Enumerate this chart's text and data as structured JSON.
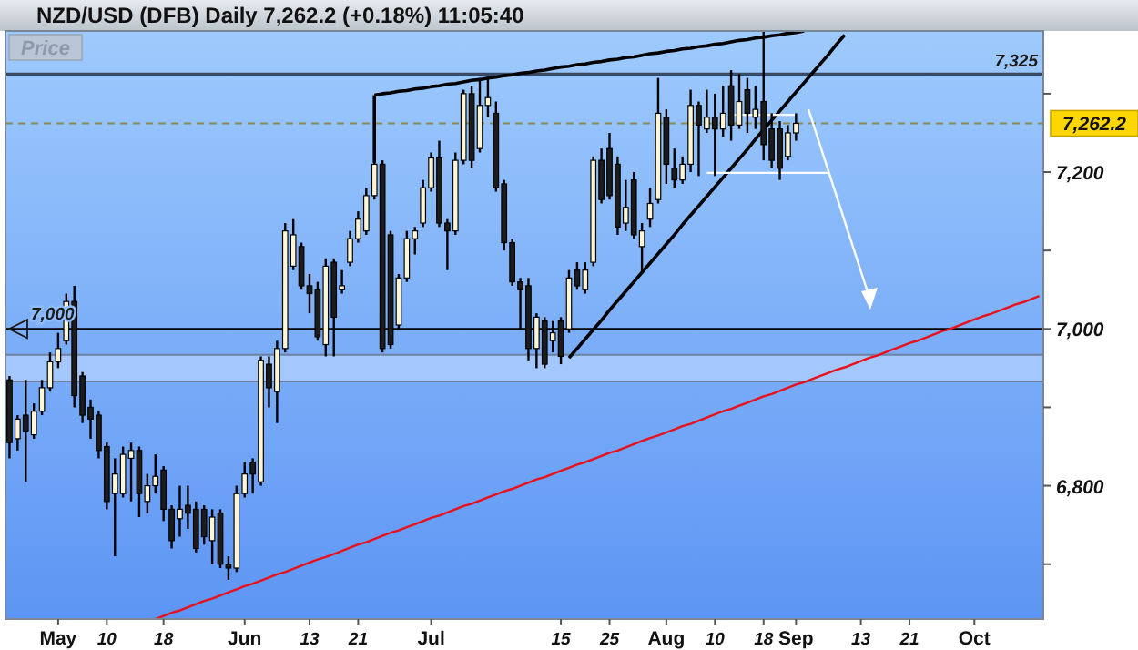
{
  "chart_data": {
    "type": "candlestick",
    "title": "NZD/USD (DFB)   Daily   7,262.2 (+0.18%)   11:05:40",
    "ylabel": "Price",
    "categories": [
      null,
      null,
      null,
      null,
      null,
      null,
      "May",
      null,
      null,
      null,
      null,
      null,
      "10",
      null,
      null,
      null,
      null,
      null,
      null,
      "18",
      null,
      null,
      null,
      null,
      null,
      null,
      null,
      null,
      null,
      "Jun",
      null,
      null,
      null,
      null,
      null,
      null,
      null,
      "13",
      null,
      null,
      null,
      null,
      null,
      "21",
      null,
      null,
      null,
      null,
      null,
      null,
      null,
      null,
      "Jul",
      null,
      null,
      null,
      null,
      null,
      null,
      null,
      null,
      null,
      null,
      null,
      null,
      null,
      null,
      null,
      "15",
      null,
      null,
      null,
      null,
      null,
      "25",
      null,
      null,
      null,
      null,
      null,
      null,
      "Aug",
      null,
      null,
      null,
      null,
      null,
      "10",
      null,
      null,
      null,
      null,
      null,
      "18",
      null,
      null,
      null,
      "Sep",
      null,
      null,
      null,
      null,
      null,
      null,
      null,
      "13",
      null,
      null,
      null,
      null,
      null,
      "21",
      null,
      null,
      null,
      null,
      null,
      null,
      null,
      "Oct",
      null,
      null,
      null,
      null,
      null,
      null,
      null,
      null
    ],
    "ylim": [
      6630,
      7380
    ],
    "yticks": [
      {
        "value": 6700,
        "label": null
      },
      {
        "value": 6800,
        "label": "6,800"
      },
      {
        "value": 6900,
        "label": null
      },
      {
        "value": 7000,
        "label": "7,000"
      },
      {
        "value": 7100,
        "label": null
      },
      {
        "value": 7200,
        "label": "7,200"
      },
      {
        "value": 7300,
        "label": null
      }
    ],
    "ohlc": [
      [
        6935,
        6940,
        6835,
        6855
      ],
      [
        6860,
        6890,
        6845,
        6885
      ],
      [
        6890,
        6935,
        6805,
        6870
      ],
      [
        6865,
        6905,
        6860,
        6895
      ],
      [
        6895,
        6935,
        6890,
        6925
      ],
      [
        6925,
        6970,
        6920,
        6958
      ],
      [
        6958,
        6995,
        6950,
        6975
      ],
      [
        6985,
        7045,
        6980,
        7035
      ],
      [
        7035,
        7055,
        6900,
        6915
      ],
      [
        6940,
        6945,
        6880,
        6890
      ],
      [
        6900,
        6910,
        6860,
        6885
      ],
      [
        6890,
        6895,
        6835,
        6845
      ],
      [
        6850,
        6855,
        6770,
        6780
      ],
      [
        6790,
        6835,
        6710,
        6815
      ],
      [
        6790,
        6850,
        6785,
        6840
      ],
      [
        6835,
        6855,
        6780,
        6845
      ],
      [
        6845,
        6850,
        6760,
        6790
      ],
      [
        6780,
        6815,
        6765,
        6800
      ],
      [
        6800,
        6840,
        6790,
        6812
      ],
      [
        6820,
        6825,
        6755,
        6770
      ],
      [
        6770,
        6775,
        6720,
        6730
      ],
      [
        6758,
        6800,
        6735,
        6770
      ],
      [
        6775,
        6800,
        6745,
        6765
      ],
      [
        6770,
        6780,
        6715,
        6720
      ],
      [
        6770,
        6775,
        6725,
        6735
      ],
      [
        6730,
        6770,
        6700,
        6760
      ],
      [
        6765,
        6770,
        6695,
        6700
      ],
      [
        6700,
        6710,
        6680,
        6695
      ],
      [
        6695,
        6800,
        6690,
        6790
      ],
      [
        6790,
        6830,
        6785,
        6815
      ],
      [
        6830,
        6835,
        6790,
        6815
      ],
      [
        6805,
        6965,
        6800,
        6960
      ],
      [
        6955,
        6965,
        6900,
        6925
      ],
      [
        6920,
        6985,
        6880,
        6975
      ],
      [
        6975,
        7135,
        6970,
        7125
      ],
      [
        7080,
        7140,
        7075,
        7120
      ],
      [
        7105,
        7110,
        7050,
        7055
      ],
      [
        7055,
        7070,
        7020,
        7045
      ],
      [
        7050,
        7060,
        6985,
        6990
      ],
      [
        6980,
        7090,
        6965,
        7080
      ],
      [
        7085,
        7090,
        6965,
        7015
      ],
      [
        7050,
        7075,
        7045,
        7055
      ],
      [
        7085,
        7125,
        7080,
        7115
      ],
      [
        7115,
        7150,
        7110,
        7140
      ],
      [
        7125,
        7180,
        7120,
        7170
      ],
      [
        7170,
        7290,
        7165,
        7210
      ],
      [
        7210,
        7215,
        6970,
        6975
      ],
      [
        7120,
        7125,
        6975,
        6980
      ],
      [
        7005,
        7070,
        7000,
        7065
      ],
      [
        7065,
        7125,
        7060,
        7115
      ],
      [
        7115,
        7130,
        7095,
        7125
      ],
      [
        7135,
        7190,
        7130,
        7180
      ],
      [
        7180,
        7225,
        7175,
        7218
      ],
      [
        7218,
        7240,
        7130,
        7135
      ],
      [
        7135,
        7140,
        7075,
        7125
      ],
      [
        7125,
        7225,
        7120,
        7215
      ],
      [
        7215,
        7305,
        7210,
        7300
      ],
      [
        7300,
        7310,
        7205,
        7215
      ],
      [
        7230,
        7320,
        7225,
        7285
      ],
      [
        7285,
        7320,
        7270,
        7295
      ],
      [
        7275,
        7290,
        7175,
        7180
      ],
      [
        7185,
        7190,
        7100,
        7110
      ],
      [
        7110,
        7115,
        7055,
        7060
      ],
      [
        7060,
        7065,
        7000,
        7050
      ],
      [
        7055,
        7065,
        6960,
        6975
      ],
      [
        6975,
        7020,
        6950,
        7015
      ],
      [
        7010,
        7015,
        6950,
        6955
      ],
      [
        6985,
        7010,
        6970,
        6995
      ],
      [
        7010,
        7015,
        6955,
        6965
      ],
      [
        7000,
        7075,
        6995,
        7065
      ],
      [
        7075,
        7085,
        7050,
        7055
      ],
      [
        7050,
        7085,
        7045,
        7075
      ],
      [
        7085,
        7220,
        7080,
        7215
      ],
      [
        7215,
        7230,
        7160,
        7165
      ],
      [
        7230,
        7250,
        7165,
        7170
      ],
      [
        7210,
        7220,
        7120,
        7130
      ],
      [
        7135,
        7190,
        7125,
        7155
      ],
      [
        7190,
        7200,
        7115,
        7120
      ],
      [
        7105,
        7135,
        7070,
        7125
      ],
      [
        7140,
        7180,
        7130,
        7160
      ],
      [
        7165,
        7320,
        7160,
        7275
      ],
      [
        7270,
        7280,
        7185,
        7210
      ],
      [
        7205,
        7230,
        7180,
        7190
      ],
      [
        7190,
        7220,
        7185,
        7210
      ],
      [
        7210,
        7305,
        7200,
        7285
      ],
      [
        7285,
        7290,
        7195,
        7260
      ],
      [
        7255,
        7305,
        7250,
        7270
      ],
      [
        7270,
        7300,
        7195,
        7255
      ],
      [
        7255,
        7310,
        7245,
        7275
      ],
      [
        7310,
        7330,
        7240,
        7260
      ],
      [
        7260,
        7325,
        7255,
        7290
      ],
      [
        7305,
        7320,
        7250,
        7275
      ],
      [
        7270,
        7310,
        7255,
        7280
      ],
      [
        7290,
        7380,
        7215,
        7235
      ],
      [
        7255,
        7275,
        7205,
        7215
      ],
      [
        7255,
        7265,
        7190,
        7205
      ],
      [
        7220,
        7260,
        7215,
        7250
      ],
      [
        7250,
        7275,
        7240,
        7262.2
      ],
      null,
      null,
      null,
      null,
      null,
      null,
      null,
      null,
      null,
      null,
      null,
      null,
      null,
      null,
      null,
      null,
      null,
      null,
      null,
      null,
      null,
      null,
      null,
      null,
      null,
      null,
      null,
      null,
      null,
      null
    ],
    "series": [
      {
        "type": "line",
        "color": "#e8101a",
        "values": [
          null,
          null,
          null,
          null,
          null,
          null,
          null,
          null,
          null,
          null,
          null,
          null,
          null,
          null,
          null,
          null,
          null,
          null,
          6630,
          6634,
          6638,
          6641,
          6645,
          6649,
          6653,
          6656,
          6660,
          6664,
          6668,
          6672,
          6675,
          6679,
          6683,
          6687,
          6690,
          6694,
          6698,
          6702,
          6706,
          6709,
          6713,
          6717,
          6721,
          6725,
          6728,
          6732,
          6736,
          6740,
          6743,
          6747,
          6751,
          6755,
          6759,
          6762,
          6766,
          6770,
          6774,
          6777,
          6781,
          6785,
          6789,
          6793,
          6796,
          6800,
          6804,
          6808,
          6811,
          6815,
          6819,
          6823,
          6827,
          6830,
          6834,
          6838,
          6842,
          6845,
          6849,
          6853,
          6857,
          6861,
          6864,
          6868,
          6872,
          6876,
          6879,
          6883,
          6887,
          6891,
          6895,
          6898,
          6902,
          6906,
          6910,
          6914,
          6917,
          6921,
          6925,
          6929,
          6932,
          6936,
          6940,
          6944,
          6948,
          6951,
          6955,
          6959,
          6963,
          6966,
          6970,
          6974,
          6978,
          6982,
          6985,
          6989,
          6993,
          6997,
          7000,
          7004,
          7008,
          7012,
          7016,
          7019,
          7023,
          7027,
          7031,
          7034,
          7038,
          7042
        ]
      },
      {
        "type": "line",
        "color": "#000000",
        "values": [
          null,
          null,
          null,
          null,
          null,
          null,
          null,
          null,
          null,
          null,
          null,
          null,
          null,
          null,
          null,
          null,
          null,
          null,
          null,
          null,
          null,
          null,
          null,
          null,
          null,
          null,
          null,
          null,
          null,
          null,
          null,
          null,
          null,
          null,
          null,
          null,
          null,
          null,
          null,
          null,
          null,
          null,
          null,
          null,
          null,
          null,
          null,
          null,
          null,
          null,
          null,
          null,
          null,
          null,
          null,
          null,
          null,
          null,
          null,
          null,
          null,
          null,
          null,
          null,
          null,
          null,
          null,
          null,
          null,
          6963,
          6975,
          6987,
          6999,
          7011,
          7024,
          7036,
          7048,
          7060,
          7072,
          7084,
          7096,
          7108,
          7120,
          7133,
          7145,
          7157,
          7169,
          7181,
          7193,
          7205,
          7217,
          7229,
          7242,
          7254,
          7266,
          7278,
          7290,
          7302,
          7314,
          7326,
          7338,
          7350,
          7363,
          7375,
          null,
          null,
          null,
          null,
          null,
          null,
          null,
          null,
          null,
          null,
          null,
          null,
          null,
          null,
          null,
          null,
          null,
          null,
          null,
          null,
          null,
          null,
          null,
          null
        ]
      },
      {
        "type": "line",
        "color": "#000000",
        "values": [
          null,
          null,
          null,
          null,
          null,
          null,
          null,
          null,
          null,
          null,
          null,
          null,
          null,
          null,
          null,
          null,
          null,
          null,
          null,
          null,
          null,
          null,
          null,
          null,
          null,
          null,
          null,
          null,
          null,
          null,
          null,
          null,
          null,
          null,
          null,
          null,
          null,
          null,
          null,
          null,
          null,
          null,
          null,
          null,
          null,
          7298,
          7300,
          7301,
          7303,
          7304,
          7306,
          7307,
          7309,
          7310,
          7312,
          7313,
          7315,
          7317,
          7318,
          7320,
          7321,
          7323,
          7324,
          7326,
          7327,
          7329,
          7330,
          7332,
          7334,
          7335,
          7337,
          7338,
          7340,
          7341,
          7343,
          7344,
          7346,
          7347,
          7349,
          7351,
          7352,
          7354,
          7355,
          7357,
          7358,
          7360,
          7361,
          7363,
          7364,
          7366,
          7368,
          7369,
          7371,
          7372,
          7374,
          7375,
          7377,
          7378,
          7380,
          null,
          null,
          null,
          null,
          null,
          null,
          null,
          null,
          null,
          null,
          null,
          null,
          null,
          null,
          null,
          null,
          null,
          null,
          null,
          null,
          null,
          null,
          null,
          null,
          null,
          null,
          null,
          null,
          null
        ]
      },
      {
        "type": "line",
        "color": "#ffffff",
        "values": [
          null,
          null,
          null,
          null,
          null,
          null,
          null,
          null,
          null,
          null,
          null,
          null,
          null,
          null,
          null,
          null,
          null,
          null,
          null,
          null,
          null,
          null,
          null,
          null,
          null,
          null,
          null,
          null,
          null,
          null,
          null,
          null,
          null,
          null,
          null,
          null,
          null,
          null,
          null,
          null,
          null,
          null,
          null,
          null,
          null,
          null,
          null,
          null,
          null,
          null,
          null,
          null,
          null,
          null,
          null,
          null,
          null,
          null,
          null,
          null,
          null,
          null,
          null,
          null,
          null,
          null,
          null,
          null,
          null,
          null,
          null,
          null,
          null,
          null,
          null,
          null,
          null,
          null,
          null,
          null,
          null,
          null,
          null,
          null,
          null,
          null,
          null,
          null,
          null,
          7273,
          7273,
          7273,
          7273,
          7273,
          7273,
          7273,
          7273,
          7273,
          null,
          null,
          null,
          null,
          null,
          null,
          null,
          null,
          null,
          null,
          null,
          null,
          null,
          null,
          null,
          null,
          null,
          null,
          null,
          null,
          null,
          null,
          null,
          null,
          null,
          null,
          null,
          null,
          null,
          null
        ]
      },
      {
        "type": "line",
        "color": "#ffffff",
        "values": [
          null,
          null,
          null,
          null,
          null,
          null,
          null,
          null,
          null,
          null,
          null,
          null,
          null,
          null,
          null,
          null,
          null,
          null,
          null,
          null,
          null,
          null,
          null,
          null,
          null,
          null,
          null,
          null,
          null,
          null,
          null,
          null,
          null,
          null,
          null,
          null,
          null,
          null,
          null,
          null,
          null,
          null,
          null,
          null,
          null,
          null,
          null,
          null,
          null,
          null,
          null,
          null,
          null,
          null,
          null,
          null,
          null,
          null,
          null,
          null,
          null,
          null,
          null,
          null,
          null,
          null,
          null,
          null,
          null,
          null,
          null,
          null,
          null,
          null,
          null,
          null,
          null,
          null,
          null,
          null,
          null,
          null,
          null,
          null,
          null,
          null,
          7199,
          7199,
          7199,
          7199,
          7199,
          7199,
          7199,
          7199,
          7199,
          7199,
          7199,
          7199,
          7199,
          7199,
          7199,
          7199,
          null,
          null,
          null,
          null,
          null,
          null,
          null,
          null,
          null,
          null,
          null,
          null,
          null,
          null,
          null,
          null,
          null,
          null,
          null,
          null,
          null,
          null,
          null,
          null,
          null,
          null
        ]
      }
    ],
    "ref_lines": [
      {
        "axis": "y",
        "value": 7325,
        "label": "7,325",
        "color": "#3a4a66"
      },
      {
        "axis": "y",
        "value": 7000,
        "label": "7,000",
        "color": "#000000"
      },
      {
        "axis": "y",
        "value": 7262.2,
        "label": "7,262.2",
        "color": "#8a8a55",
        "line_style": "dashed"
      }
    ],
    "bands": [
      {
        "axis": "y",
        "from": 6933,
        "to": 6967,
        "color": "#a9ccff"
      }
    ]
  }
}
